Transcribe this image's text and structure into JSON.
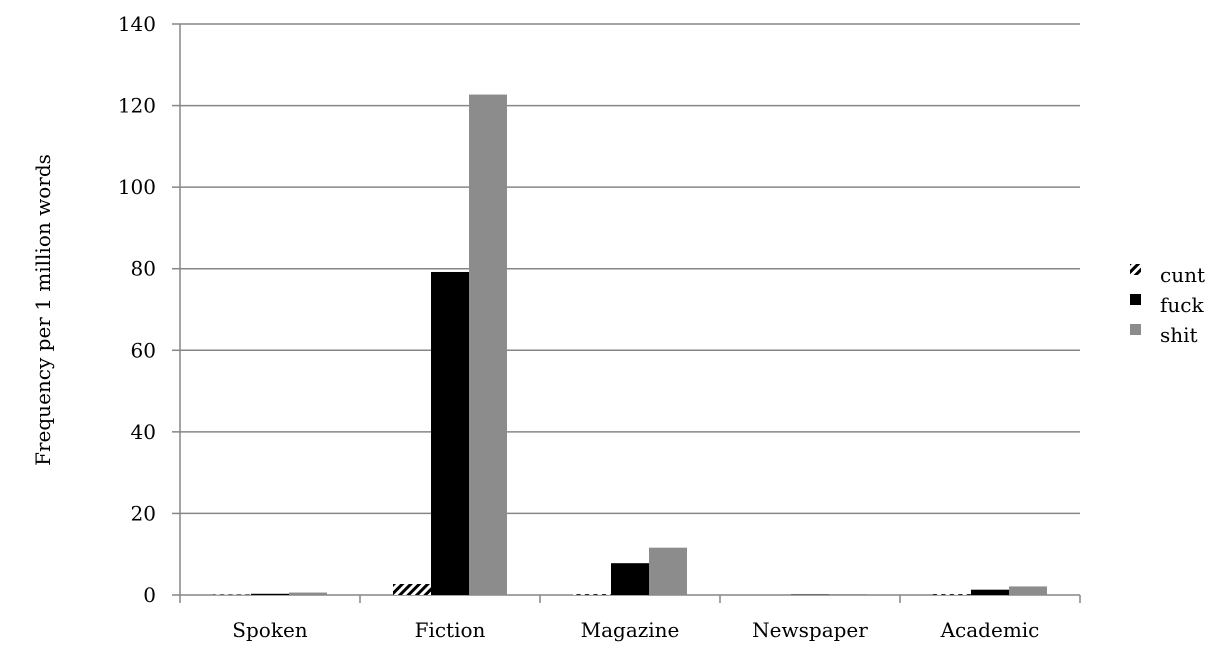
{
  "chart_data": {
    "type": "bar",
    "title": "",
    "xlabel": "",
    "ylabel": "Frequency per 1 million words",
    "ylim": [
      0,
      140
    ],
    "yticks": [
      0,
      20,
      40,
      60,
      80,
      100,
      120,
      140
    ],
    "grid": true,
    "legend_position": "right",
    "categories": [
      "Spoken",
      "Fiction",
      "Magazine",
      "Newspaper",
      "Academic"
    ],
    "series": [
      {
        "name": "cunt",
        "values": [
          0.1,
          2.7,
          0.2,
          0.0,
          0.2
        ],
        "fill": "hatch",
        "color": "#000000"
      },
      {
        "name": "fuck",
        "values": [
          0.3,
          79.2,
          7.8,
          0.1,
          1.3
        ],
        "fill": "solid",
        "color": "#000000"
      },
      {
        "name": "shit",
        "values": [
          0.6,
          122.7,
          11.6,
          0.2,
          2.1
        ],
        "fill": "solid",
        "color": "#8c8c8c"
      }
    ],
    "colors": {
      "grid": "#868686",
      "axis": "#868686",
      "hatch_stripe": "#000000",
      "hatch_bg": "#ffffff"
    }
  }
}
